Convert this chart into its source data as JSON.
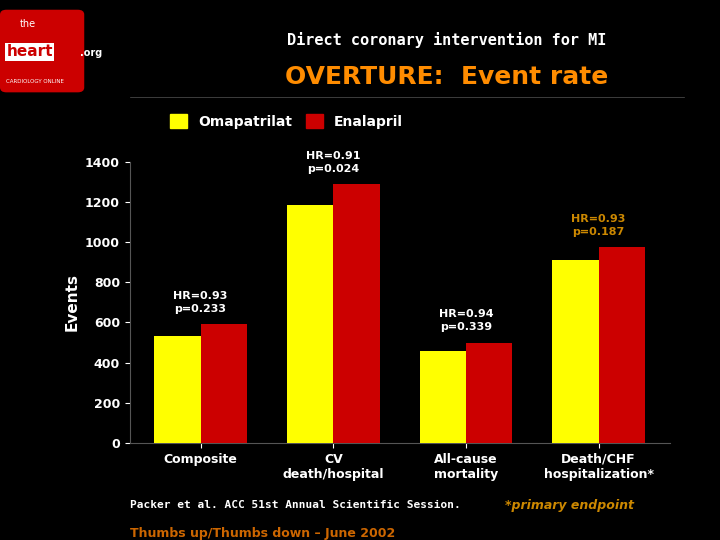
{
  "title_top": "Direct coronary intervention for MI",
  "title_main": "OVERTURE:  Event rate",
  "ylabel": "Events",
  "categories": [
    "Composite",
    "CV\ndeath/hospital",
    "All-cause\nmortality",
    "Death/CHF\nhospitalization*"
  ],
  "omapatrilat": [
    530,
    1185,
    460,
    910
  ],
  "enalapril": [
    590,
    1290,
    500,
    975
  ],
  "omapatrilat_color": "#FFFF00",
  "enalapril_color": "#CC0000",
  "background_color": "#000000",
  "text_color": "#FFFFFF",
  "legend_label_1": "Omapatrilat",
  "legend_label_2": "Enalapril",
  "annotations": [
    {
      "text": "HR=0.93\np=0.233",
      "x": 0,
      "color": "#FFFFFF"
    },
    {
      "text": "HR=0.91\np=0.024",
      "x": 1,
      "color": "#FFFFFF"
    },
    {
      "text": "HR=0.94\np=0.339",
      "x": 2,
      "color": "#FFFFFF"
    },
    {
      "text": "HR=0.93\np=0.187",
      "x": 3,
      "color": "#CC8800"
    }
  ],
  "footer_left": "Packer et al. ACC 51st Annual Scientific Session.",
  "footer_right": "*primary endpoint",
  "footer_bottom": "Thumbs up/Thumbs down – June 2002",
  "ylim": [
    0,
    1400
  ],
  "yticks": [
    0,
    200,
    400,
    600,
    800,
    1000,
    1200,
    1400
  ],
  "title_main_color": "#FF8C00",
  "footer_right_color": "#CC8800",
  "footer_bottom_color": "#CC6600"
}
